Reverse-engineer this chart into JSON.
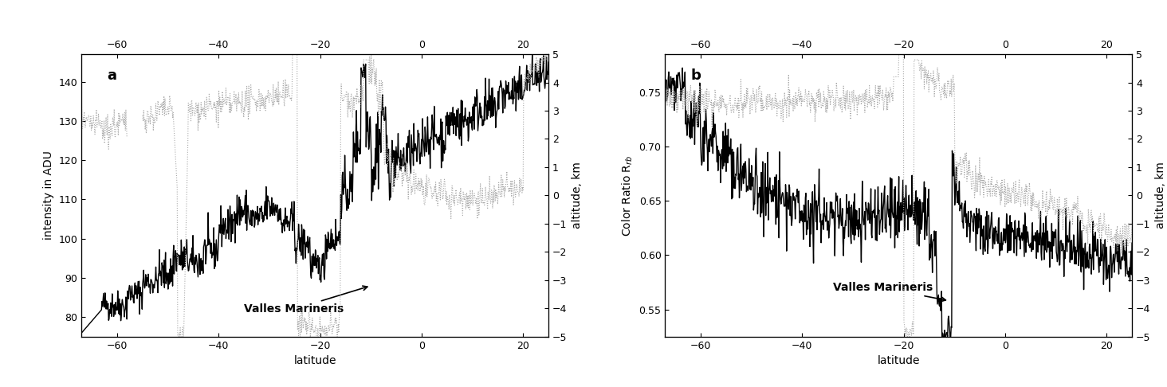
{
  "xlim": [
    -67,
    25
  ],
  "xlim_top_ticks": [
    -60,
    -40,
    -20,
    0,
    20
  ],
  "xlim_bottom_ticks": [
    -60,
    -40,
    -20,
    0,
    20
  ],
  "ylim_a": [
    75,
    147
  ],
  "ylim_b": [
    0.525,
    0.785
  ],
  "ylim_alt": [
    -5,
    5
  ],
  "ylabel_a": "intensity in ADU",
  "ylabel_b": "Color Ratio R$_{rb}$",
  "ylabel_right": "altitude, km",
  "xlabel": "latitude",
  "label_a": "a",
  "label_b": "b",
  "annotation": "Valles Marineris",
  "bg_color": "#ffffff",
  "line_color_solid": "#000000",
  "line_color_dotted": "#aaaaaa",
  "yticks_a": [
    80,
    90,
    100,
    110,
    120,
    130,
    140
  ],
  "yticks_b": [
    0.55,
    0.6,
    0.65,
    0.7,
    0.75
  ],
  "yticks_alt": [
    -5,
    -4,
    -3,
    -2,
    -1,
    0,
    1,
    2,
    3,
    4,
    5
  ]
}
